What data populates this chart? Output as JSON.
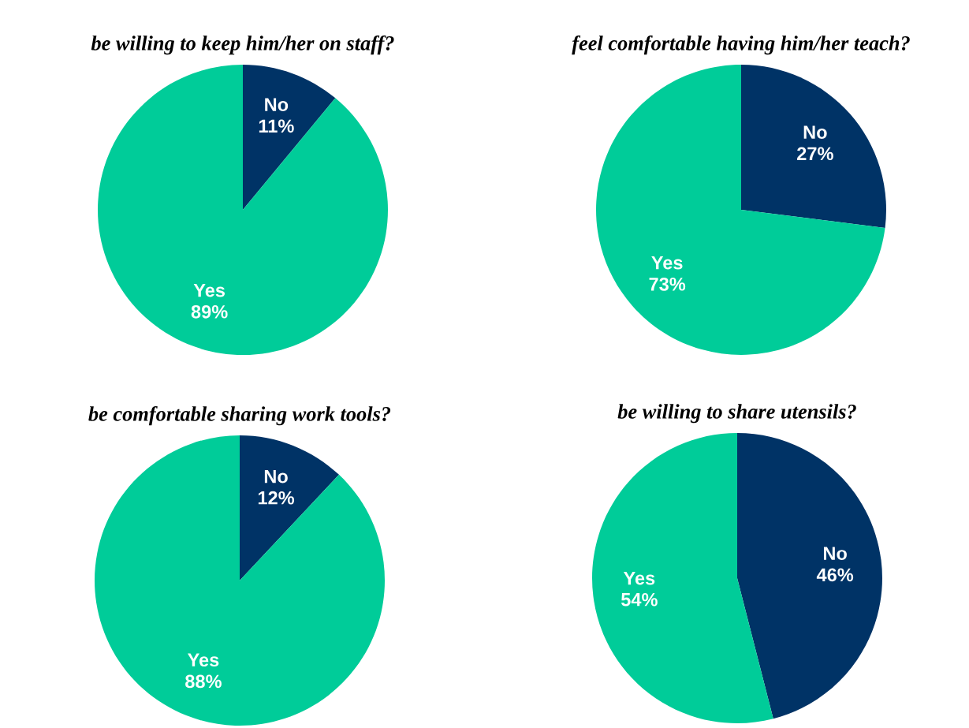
{
  "chart_data": [
    {
      "type": "pie",
      "title": "be willing to keep him/her on staff?",
      "categories": [
        "No",
        "Yes"
      ],
      "values": [
        11,
        89
      ],
      "colors": [
        "#003366",
        "#00cc99"
      ],
      "value_labels": [
        "11%",
        "89%"
      ]
    },
    {
      "type": "pie",
      "title": "feel comfortable having him/her teach?",
      "categories": [
        "No",
        "Yes"
      ],
      "values": [
        27,
        73
      ],
      "colors": [
        "#003366",
        "#00cc99"
      ],
      "value_labels": [
        "27%",
        "73%"
      ]
    },
    {
      "type": "pie",
      "title": "be comfortable sharing work tools?",
      "categories": [
        "No",
        "Yes"
      ],
      "values": [
        12,
        88
      ],
      "colors": [
        "#003366",
        "#00cc99"
      ],
      "value_labels": [
        "12%",
        "88%"
      ]
    },
    {
      "type": "pie",
      "title": "be willing to share utensils?",
      "categories": [
        "No",
        "Yes"
      ],
      "values": [
        46,
        54
      ],
      "colors": [
        "#003366",
        "#00cc99"
      ],
      "value_labels": [
        "46%",
        "54%"
      ]
    }
  ]
}
